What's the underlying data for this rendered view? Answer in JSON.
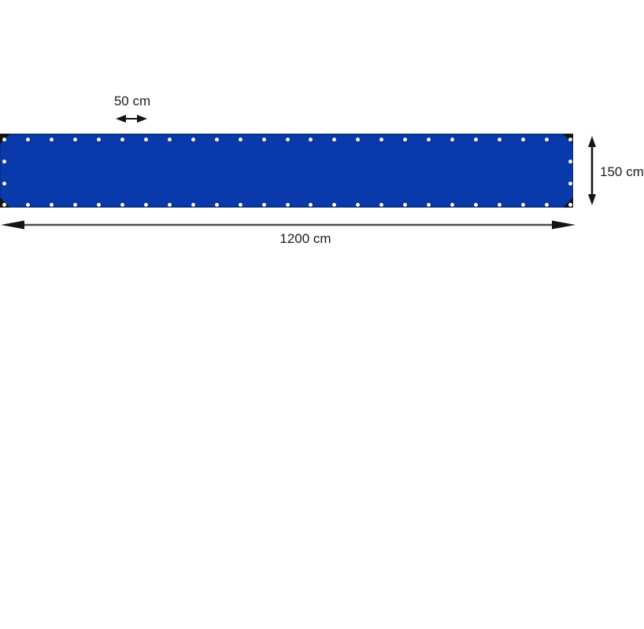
{
  "diagram": {
    "type": "product-dimension-diagram",
    "subject": "blue tarpaulin with eyelets",
    "labels": {
      "spacing": "50 cm",
      "height": "150 cm",
      "width": "1200 cm"
    },
    "dimensions": {
      "width_cm": 1200,
      "height_cm": 150,
      "eyelet_spacing_cm": 50
    },
    "tarp": {
      "grommets": {
        "top_count": 25,
        "bottom_count": 25,
        "left_middle_count": 2,
        "right_middle_count": 2
      },
      "corner_reinforcements": 4
    },
    "colors": {
      "tarp_blue": "#0939aa",
      "tarp_edge": "#07307f",
      "corner_black": "#141414",
      "grommet_white": "#ffffff",
      "arrow_black": "#141414",
      "arrow_line_gray": "#4f4f4f",
      "text_color": "#1c1c1c",
      "background": "#ffffff"
    }
  }
}
